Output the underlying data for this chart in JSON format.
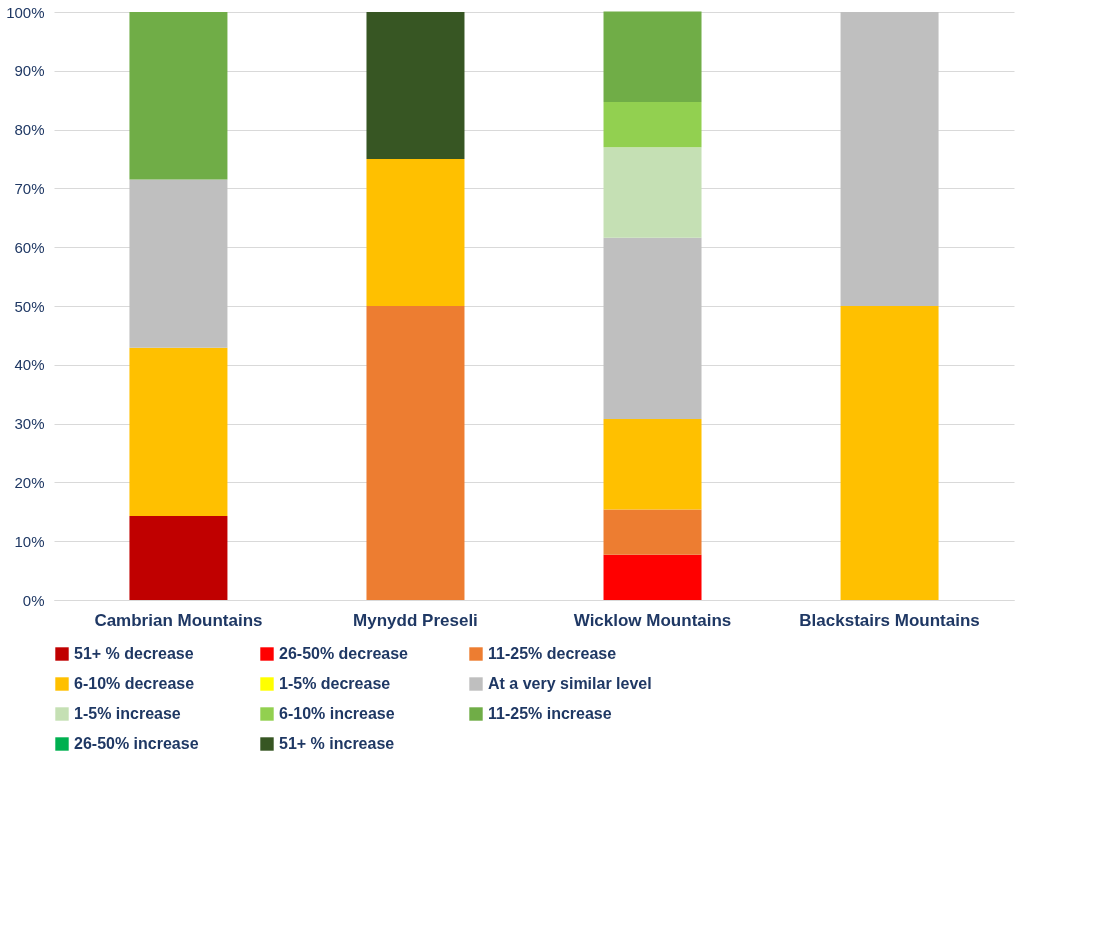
{
  "chart_data": {
    "type": "bar",
    "stacked": true,
    "categories": [
      "Cambrian Mountains",
      "Mynydd Preseli",
      "Wicklow Mountains",
      "Blackstairs Mountains"
    ],
    "ylim": [
      0,
      100
    ],
    "yticks": [
      {
        "value": 0,
        "label": "0%"
      },
      {
        "value": 10,
        "label": "10%"
      },
      {
        "value": 20,
        "label": "20%"
      },
      {
        "value": 30,
        "label": "30%"
      },
      {
        "value": 40,
        "label": "40%"
      },
      {
        "value": 50,
        "label": "50%"
      },
      {
        "value": 60,
        "label": "60%"
      },
      {
        "value": 70,
        "label": "70%"
      },
      {
        "value": 80,
        "label": "80%"
      },
      {
        "value": 90,
        "label": "90%"
      },
      {
        "value": 100,
        "label": "100%"
      }
    ],
    "grid": "y",
    "legend": "bottom",
    "series": [
      {
        "name": "51+ % decrease",
        "color": "#c00000",
        "values": [
          14.3,
          0,
          0,
          0
        ]
      },
      {
        "name": "26-50% decrease",
        "color": "#ff0000",
        "values": [
          0,
          0,
          7.7,
          0
        ]
      },
      {
        "name": "11-25% decrease",
        "color": "#ed7d31",
        "values": [
          0,
          50,
          7.7,
          0
        ]
      },
      {
        "name": "6-10% decrease",
        "color": "#ffc000",
        "values": [
          28.6,
          25,
          15.4,
          50
        ]
      },
      {
        "name": "1-5% decrease",
        "color": "#ffff00",
        "values": [
          0,
          0,
          0,
          0
        ]
      },
      {
        "name": "At a very similar level",
        "color": "#bfbfbf",
        "values": [
          28.6,
          0,
          30.8,
          50
        ]
      },
      {
        "name": "1-5% increase",
        "color": "#c5e0b4",
        "values": [
          0,
          0,
          15.4,
          0
        ]
      },
      {
        "name": "6-10% increase",
        "color": "#92d050",
        "values": [
          0,
          0,
          7.7,
          0
        ]
      },
      {
        "name": "11-25% increase",
        "color": "#70ad47",
        "values": [
          28.5,
          0,
          15.4,
          0
        ]
      },
      {
        "name": "26-50% increase",
        "color": "#00b050",
        "values": [
          0,
          0,
          0,
          0
        ]
      },
      {
        "name": "51+ % increase",
        "color": "#375623",
        "values": [
          0,
          25,
          0,
          0
        ]
      }
    ]
  }
}
